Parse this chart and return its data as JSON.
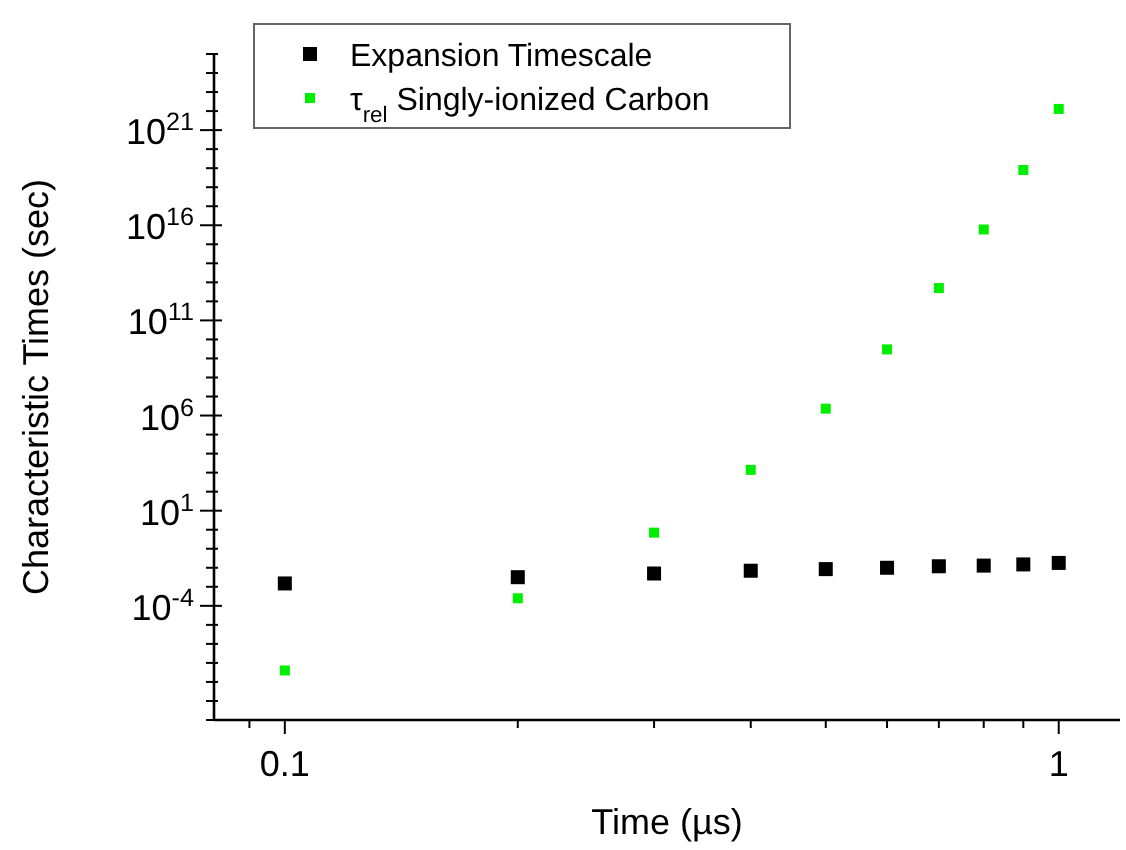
{
  "chart_data": {
    "type": "scatter",
    "xlabel": "Time (µs)",
    "ylabel": "Characteristic Times (sec)",
    "log": "xy",
    "marker": "square",
    "legend": "top left",
    "grid": false,
    "xlim": [
      0.081,
      1.2
    ],
    "ylim": [
      1e-10,
      1e+25
    ],
    "xticks": [
      {
        "value": 0.09,
        "label": null
      },
      0.1,
      {
        "value": 0.2,
        "label": null
      },
      {
        "value": 0.3,
        "label": null
      },
      {
        "value": 0.4,
        "label": null
      },
      {
        "value": 0.5,
        "label": null
      },
      {
        "value": 0.6,
        "label": null
      },
      {
        "value": 0.7,
        "label": null
      },
      {
        "value": 0.8,
        "label": null
      },
      {
        "value": 0.9,
        "label": null
      },
      1
    ],
    "yticks": [
      {
        "value": 1e-10,
        "label": null
      },
      {
        "value": 1e-09,
        "label": null
      },
      {
        "value": 1e-08,
        "label": null
      },
      {
        "value": 1e-07,
        "label": null
      },
      {
        "value": 1e-06,
        "label": null
      },
      {
        "value": 1e-05,
        "label": null
      },
      {
        "value": 0.0001,
        "label": "10$^{-4}$"
      },
      {
        "value": 0.001,
        "label": null
      },
      {
        "value": 0.01,
        "label": null
      },
      {
        "value": 0.1,
        "label": null
      },
      {
        "value": 1,
        "label": null
      },
      {
        "value": 10,
        "label": "10$^{1}$"
      },
      {
        "value": 100,
        "label": null
      },
      {
        "value": 1000.0,
        "label": null
      },
      {
        "value": 10000.0,
        "label": null
      },
      {
        "value": 100000.0,
        "label": null
      },
      {
        "value": 1000000.0,
        "label": "10$^{6}$"
      },
      {
        "value": 10000000.0,
        "label": null
      },
      {
        "value": 100000000.0,
        "label": null
      },
      {
        "value": 1000000000.0,
        "label": null
      },
      {
        "value": 10000000000.0,
        "label": null
      },
      {
        "value": 100000000000.0,
        "label": "10$^{11}$"
      },
      {
        "value": 1000000000000.0,
        "label": null
      },
      {
        "value": 10000000000000.0,
        "label": null
      },
      {
        "value": 100000000000000.0,
        "label": null
      },
      {
        "value": 1000000000000000.0,
        "label": null
      },
      {
        "value": 1e+16,
        "label": "10$^{16}$"
      },
      {
        "value": 1e+17,
        "label": null
      },
      {
        "value": 1e+18,
        "label": null
      },
      {
        "value": 1e+19,
        "label": null
      },
      {
        "value": 1e+20,
        "label": null
      },
      {
        "value": 1e+21,
        "label": "10$^{21}$"
      },
      {
        "value": 1e+22,
        "label": null
      },
      {
        "value": 1e+23,
        "label": null
      },
      {
        "value": 1e+24,
        "label": null
      },
      {
        "value": 1e+25,
        "label": null
      }
    ],
    "x": [
      0.1,
      0.2,
      0.3,
      0.4,
      0.5,
      0.6,
      0.7,
      0.8,
      0.9,
      1.0
    ],
    "series": [
      {
        "name": "Expansion Timescale",
        "color": "#000000",
        "values": [
          0.0015,
          0.0032,
          0.005,
          0.007,
          0.0085,
          0.01,
          0.012,
          0.013,
          0.015,
          0.018
        ]
      },
      {
        "name": "τ$_{rel}$ Singly-ionized Carbon",
        "color": "#00ee00",
        "values": [
          4e-08,
          0.00025,
          0.7,
          1400,
          2300000.0,
          3000000000.0,
          5000000000000.0,
          6000000000000000.0,
          8e+18,
          1.3e+22
        ]
      }
    ]
  }
}
